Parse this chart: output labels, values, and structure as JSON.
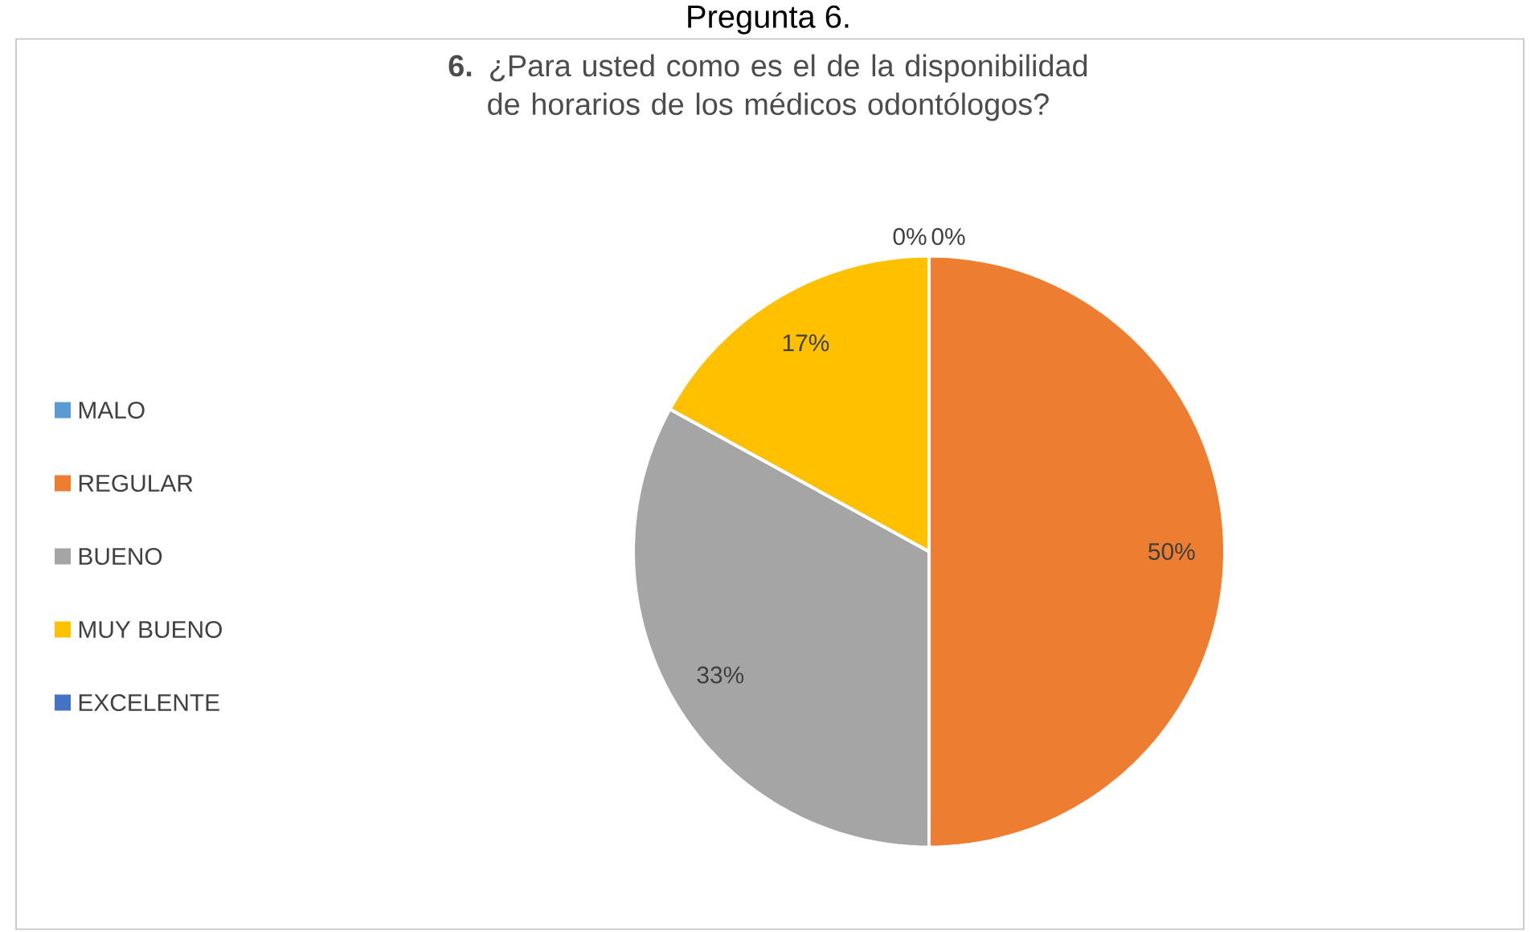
{
  "chart_data": {
    "type": "pie",
    "title": "Pregunta 6.",
    "subtitle": "**6.** ¿Para usted como es el de la disponibilidad de horarios de los médicos odontólogos?",
    "categories": [
      "MALO",
      "REGULAR",
      "BUENO",
      "MUY BUENO",
      "EXCELENTE"
    ],
    "values": [
      0,
      50,
      33,
      17,
      0
    ],
    "colors": [
      "#5b9bd5",
      "#ed7d31",
      "#a5a5a5",
      "#ffc000",
      "#4472c4"
    ],
    "value_labels": [
      "0%",
      "50%",
      "33%",
      "17%",
      "0%"
    ],
    "legend": "left"
  }
}
